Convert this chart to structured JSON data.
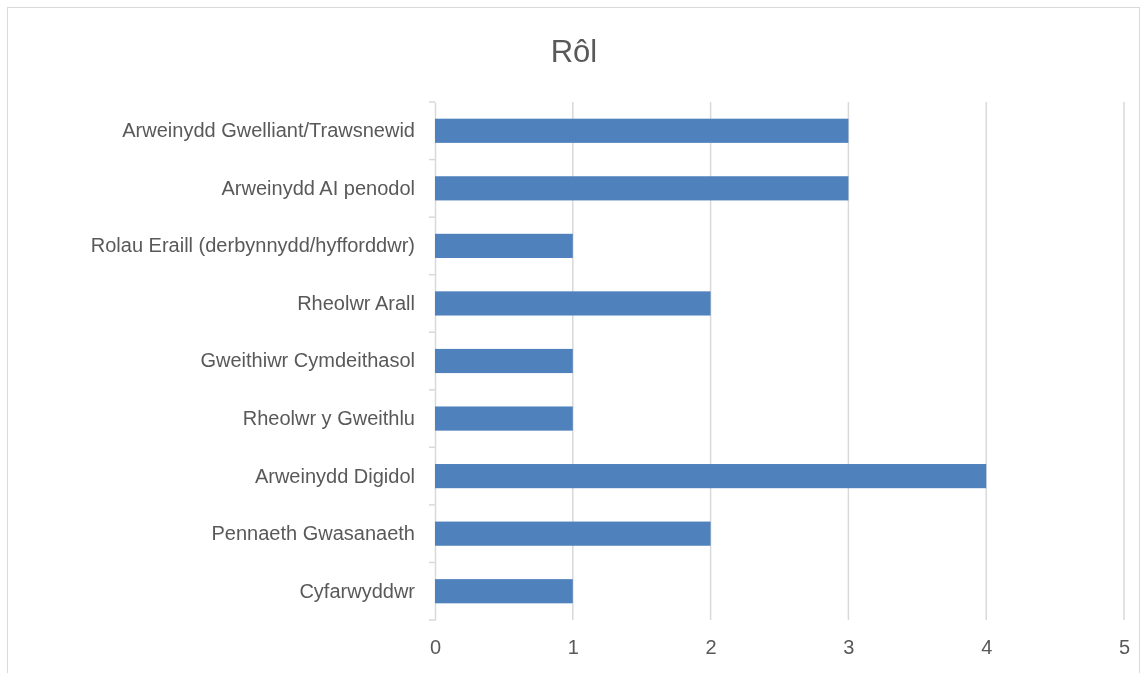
{
  "chart_data": {
    "type": "bar",
    "orientation": "horizontal",
    "title": "Rôl",
    "categories": [
      "Arweinydd Gwelliant/Trawsnewid",
      "Arweinydd AI penodol",
      "Rolau Eraill (derbynnydd/hyfforddwr)",
      "Rheolwr Arall",
      "Gweithiwr Cymdeithasol",
      "Rheolwr y Gweithlu",
      "Arweinydd Digidol",
      "Pennaeth Gwasanaeth",
      "Cyfarwyddwr"
    ],
    "values": [
      3,
      3,
      1,
      2,
      1,
      1,
      4,
      2,
      1
    ],
    "color": "#4f81bd",
    "xlim": [
      0,
      5
    ],
    "xticks": [
      0,
      1,
      2,
      3,
      4,
      5
    ],
    "grid": "x"
  }
}
